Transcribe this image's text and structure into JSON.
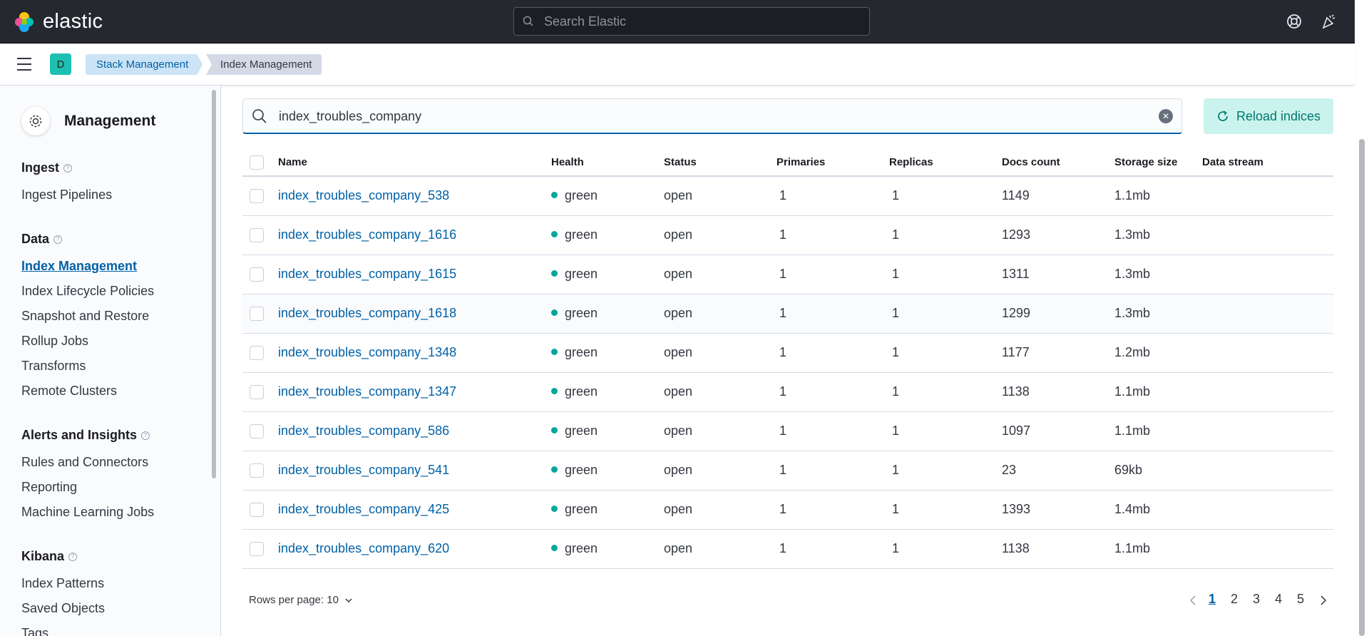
{
  "app": {
    "logo_text": "elastic"
  },
  "global_search": {
    "placeholder": "Search Elastic"
  },
  "breadcrumbs": {
    "space_initial": "D",
    "items": [
      "Stack Management",
      "Index Management"
    ]
  },
  "sidebar": {
    "title": "Management",
    "sections": [
      {
        "title": "Ingest",
        "items": [
          "Ingest Pipelines"
        ]
      },
      {
        "title": "Data",
        "items": [
          "Index Management",
          "Index Lifecycle Policies",
          "Snapshot and Restore",
          "Rollup Jobs",
          "Transforms",
          "Remote Clusters"
        ]
      },
      {
        "title": "Alerts and Insights",
        "items": [
          "Rules and Connectors",
          "Reporting",
          "Machine Learning Jobs"
        ]
      },
      {
        "title": "Kibana",
        "items": [
          "Index Patterns",
          "Saved Objects",
          "Tags"
        ]
      }
    ],
    "active_item": "Index Management"
  },
  "main": {
    "search_value": "index_troubles_company",
    "reload_label": "Reload indices",
    "columns": [
      "Name",
      "Health",
      "Status",
      "Primaries",
      "Replicas",
      "Docs count",
      "Storage size",
      "Data stream"
    ],
    "rows": [
      {
        "name": "index_troubles_company_538",
        "health": "green",
        "status": "open",
        "primaries": "1",
        "replicas": "1",
        "docs": "1149",
        "size": "1.1mb"
      },
      {
        "name": "index_troubles_company_1616",
        "health": "green",
        "status": "open",
        "primaries": "1",
        "replicas": "1",
        "docs": "1293",
        "size": "1.3mb"
      },
      {
        "name": "index_troubles_company_1615",
        "health": "green",
        "status": "open",
        "primaries": "1",
        "replicas": "1",
        "docs": "1311",
        "size": "1.3mb"
      },
      {
        "name": "index_troubles_company_1618",
        "health": "green",
        "status": "open",
        "primaries": "1",
        "replicas": "1",
        "docs": "1299",
        "size": "1.3mb"
      },
      {
        "name": "index_troubles_company_1348",
        "health": "green",
        "status": "open",
        "primaries": "1",
        "replicas": "1",
        "docs": "1177",
        "size": "1.2mb"
      },
      {
        "name": "index_troubles_company_1347",
        "health": "green",
        "status": "open",
        "primaries": "1",
        "replicas": "1",
        "docs": "1138",
        "size": "1.1mb"
      },
      {
        "name": "index_troubles_company_586",
        "health": "green",
        "status": "open",
        "primaries": "1",
        "replicas": "1",
        "docs": "1097",
        "size": "1.1mb"
      },
      {
        "name": "index_troubles_company_541",
        "health": "green",
        "status": "open",
        "primaries": "1",
        "replicas": "1",
        "docs": "23",
        "size": "69kb"
      },
      {
        "name": "index_troubles_company_425",
        "health": "green",
        "status": "open",
        "primaries": "1",
        "replicas": "1",
        "docs": "1393",
        "size": "1.4mb"
      },
      {
        "name": "index_troubles_company_620",
        "health": "green",
        "status": "open",
        "primaries": "1",
        "replicas": "1",
        "docs": "1138",
        "size": "1.1mb"
      }
    ],
    "rows_per_page": "Rows per page: 10",
    "pages": [
      "1",
      "2",
      "3",
      "4",
      "5"
    ],
    "current_page": "1"
  },
  "colors": {
    "health_green": "#00a69b",
    "link": "#0061a6",
    "topbar": "#25282f"
  }
}
